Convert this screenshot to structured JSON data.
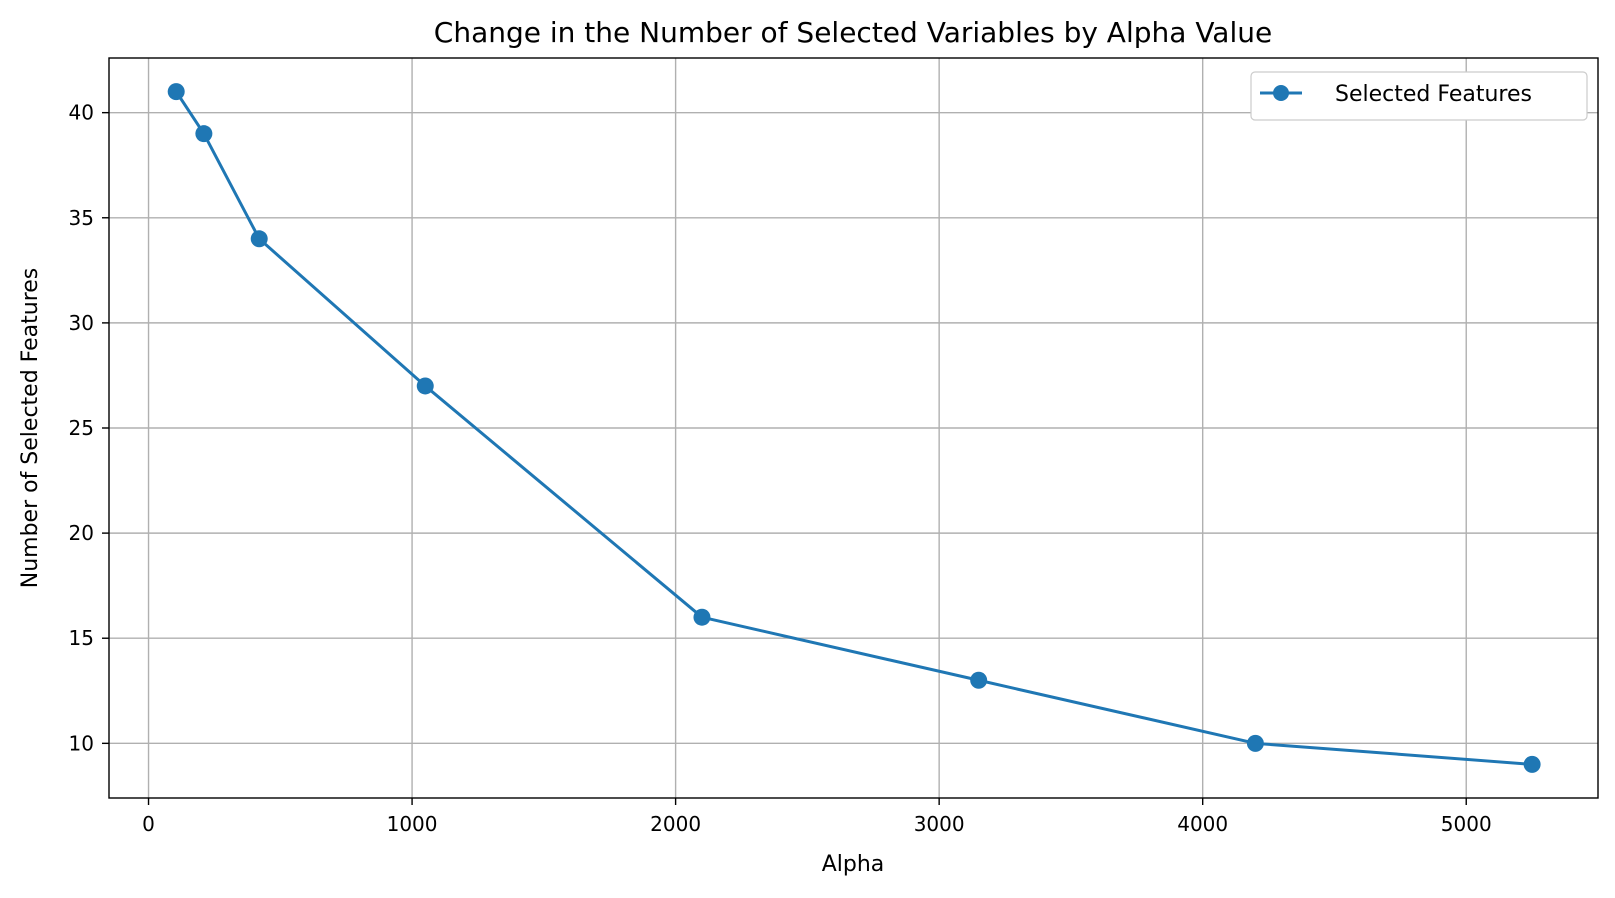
{
  "chart_data": {
    "type": "line",
    "title": "Change in the Number of Selected Variables by Alpha Value",
    "xlabel": "Alpha",
    "ylabel": "Number of Selected Features",
    "xlim": [
      -150,
      5500
    ],
    "ylim": [
      7.4,
      42.6
    ],
    "xticks": [
      0,
      1000,
      2000,
      3000,
      4000,
      5000
    ],
    "yticks": [
      10,
      15,
      20,
      25,
      30,
      35,
      40
    ],
    "xtick_labels": [
      "0",
      "1000",
      "2000",
      "3000",
      "4000",
      "5000"
    ],
    "ytick_labels": [
      "10",
      "15",
      "20",
      "25",
      "30",
      "35",
      "40"
    ],
    "grid": true,
    "legend_position": "top-right",
    "series": [
      {
        "name": "Selected Features",
        "color": "#1f77b4",
        "marker": "circle",
        "x": [
          105,
          210,
          420,
          1050,
          2100,
          3150,
          4200,
          5250
        ],
        "y": [
          41,
          39,
          34,
          27,
          16,
          13,
          10,
          9
        ]
      }
    ]
  }
}
